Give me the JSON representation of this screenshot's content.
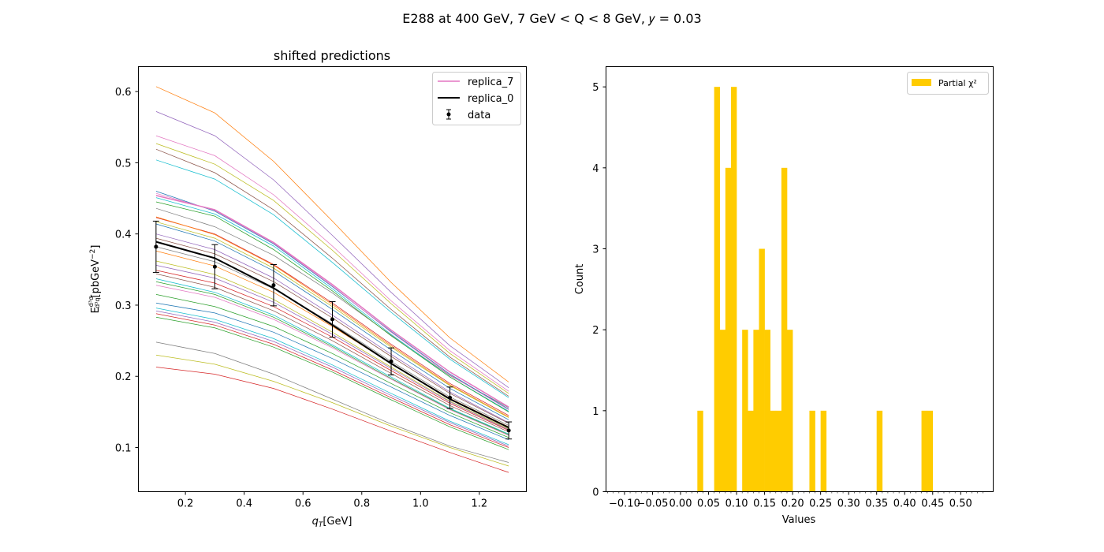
{
  "figure": {
    "suptitle": "E288  at 400 GeV, 7 GeV < Q < 8 GeV, 𝑦 = 0.03"
  },
  "chart_data": [
    {
      "type": "line",
      "title": "shifted predictions",
      "xlabel": "q_T[GeV]",
      "ylabel": "E d³σ/d³q [pbGeV⁻²]",
      "xlim": [
        0.04,
        1.36
      ],
      "ylim": [
        0.038,
        0.635
      ],
      "x_ticks": [
        0.2,
        0.4,
        0.6,
        0.8,
        1.0,
        1.2
      ],
      "x_tick_labels": [
        "0.2",
        "0.4",
        "0.6",
        "0.8",
        "1.0",
        "1.2"
      ],
      "y_ticks": [
        0.1,
        0.2,
        0.3,
        0.4,
        0.5,
        0.6
      ],
      "y_tick_labels": [
        "0.1",
        "0.2",
        "0.3",
        "0.4",
        "0.5",
        "0.6"
      ],
      "grid": false,
      "legend": {
        "location": "upper right",
        "entries": [
          {
            "label": "replica_7",
            "color": "#e377c2",
            "kind": "line"
          },
          {
            "label": "replica_0",
            "color": "#000000",
            "kind": "line"
          },
          {
            "label": "data",
            "color": "#000000",
            "kind": "errorbar"
          }
        ]
      },
      "x": [
        0.1,
        0.3,
        0.5,
        0.7,
        0.9,
        1.1,
        1.3
      ],
      "replica_lines": [
        {
          "color": "#ff7f0e",
          "values": [
            0.607,
            0.57,
            0.502,
            0.418,
            0.332,
            0.254,
            0.192
          ]
        },
        {
          "color": "#9467bd",
          "values": [
            0.572,
            0.538,
            0.476,
            0.398,
            0.318,
            0.243,
            0.184
          ]
        },
        {
          "color": "#e377c2",
          "values": [
            0.538,
            0.51,
            0.455,
            0.383,
            0.306,
            0.236,
            0.179
          ]
        },
        {
          "color": "#bcbd22",
          "values": [
            0.527,
            0.498,
            0.447,
            0.377,
            0.302,
            0.232,
            0.176
          ]
        },
        {
          "color": "#8c564b",
          "values": [
            0.519,
            0.486,
            0.434,
            0.366,
            0.294,
            0.227,
            0.172
          ]
        },
        {
          "color": "#17becf",
          "values": [
            0.504,
            0.477,
            0.427,
            0.36,
            0.29,
            0.224,
            0.17
          ]
        },
        {
          "color": "#7f7f7f",
          "values": [
            0.436,
            0.41,
            0.37,
            0.317,
            0.258,
            0.201,
            0.156
          ]
        },
        {
          "color": "#1f77b4",
          "values": [
            0.46,
            0.432,
            0.386,
            0.326,
            0.263,
            0.203,
            0.154
          ]
        },
        {
          "color": "#e377c2",
          "values": [
            0.457,
            0.433,
            0.387,
            0.327,
            0.262,
            0.202,
            0.153
          ]
        },
        {
          "color": "#17becf",
          "values": [
            0.451,
            0.428,
            0.383,
            0.323,
            0.259,
            0.199,
            0.151
          ]
        },
        {
          "color": "#2ca02c",
          "values": [
            0.445,
            0.425,
            0.378,
            0.32,
            0.257,
            0.199,
            0.15
          ]
        },
        {
          "color": "#d62728",
          "values": [
            0.423,
            0.4,
            0.357,
            0.303,
            0.245,
            0.19,
            0.145
          ]
        },
        {
          "color": "#bcbd22",
          "values": [
            0.417,
            0.394,
            0.352,
            0.298,
            0.241,
            0.187,
            0.142
          ]
        },
        {
          "color": "#ff7f0e",
          "values": [
            0.424,
            0.399,
            0.356,
            0.301,
            0.243,
            0.188,
            0.143
          ]
        },
        {
          "color": "#9467bd",
          "values": [
            0.4,
            0.378,
            0.338,
            0.286,
            0.231,
            0.178,
            0.135
          ]
        },
        {
          "color": "#1f77b4",
          "values": [
            0.414,
            0.39,
            0.348,
            0.294,
            0.237,
            0.183,
            0.139
          ]
        },
        {
          "color": "#8c564b",
          "values": [
            0.394,
            0.372,
            0.333,
            0.282,
            0.228,
            0.176,
            0.134
          ]
        },
        {
          "color": "#7f7f7f",
          "values": [
            0.382,
            0.361,
            0.323,
            0.274,
            0.221,
            0.171,
            0.131
          ]
        },
        {
          "color": "#ff7f0e",
          "values": [
            0.376,
            0.355,
            0.318,
            0.27,
            0.218,
            0.169,
            0.129
          ]
        },
        {
          "color": "#bcbd22",
          "values": [
            0.362,
            0.343,
            0.308,
            0.262,
            0.213,
            0.165,
            0.126
          ]
        },
        {
          "color": "#9467bd",
          "values": [
            0.356,
            0.338,
            0.304,
            0.259,
            0.211,
            0.164,
            0.125
          ]
        },
        {
          "color": "#d62728",
          "values": [
            0.349,
            0.331,
            0.298,
            0.255,
            0.208,
            0.162,
            0.124
          ]
        },
        {
          "color": "#8c564b",
          "values": [
            0.344,
            0.325,
            0.292,
            0.25,
            0.204,
            0.159,
            0.122
          ]
        },
        {
          "color": "#17becf",
          "values": [
            0.337,
            0.318,
            0.286,
            0.244,
            0.199,
            0.155,
            0.119
          ]
        },
        {
          "color": "#2ca02c",
          "values": [
            0.333,
            0.315,
            0.283,
            0.242,
            0.197,
            0.154,
            0.118
          ]
        },
        {
          "color": "#e377c2",
          "values": [
            0.328,
            0.311,
            0.28,
            0.24,
            0.196,
            0.153,
            0.117
          ]
        },
        {
          "color": "#2ca02c",
          "values": [
            0.315,
            0.298,
            0.27,
            0.232,
            0.19,
            0.149,
            0.114
          ]
        },
        {
          "color": "#1f77b4",
          "values": [
            0.303,
            0.289,
            0.262,
            0.225,
            0.185,
            0.145,
            0.111
          ]
        },
        {
          "color": "#17becf",
          "values": [
            0.296,
            0.28,
            0.253,
            0.216,
            0.176,
            0.137,
            0.104
          ]
        },
        {
          "color": "#9467bd",
          "values": [
            0.292,
            0.276,
            0.249,
            0.213,
            0.173,
            0.135,
            0.102
          ]
        },
        {
          "color": "#d62728",
          "values": [
            0.288,
            0.272,
            0.245,
            0.209,
            0.17,
            0.132,
            0.1
          ]
        },
        {
          "color": "#2ca02c",
          "values": [
            0.283,
            0.268,
            0.241,
            0.206,
            0.167,
            0.129,
            0.097
          ]
        },
        {
          "color": "#7f7f7f",
          "values": [
            0.248,
            0.232,
            0.203,
            0.168,
            0.133,
            0.102,
            0.079
          ]
        },
        {
          "color": "#bcbd22",
          "values": [
            0.23,
            0.217,
            0.193,
            0.163,
            0.13,
            0.1,
            0.074
          ]
        },
        {
          "color": "#d62728",
          "values": [
            0.213,
            0.203,
            0.183,
            0.154,
            0.123,
            0.093,
            0.065
          ]
        }
      ],
      "series": [
        {
          "name": "replica_7",
          "color": "#e377c2",
          "values": [
            0.454,
            0.434,
            0.388,
            0.329,
            0.265,
            0.206,
            0.157
          ]
        },
        {
          "name": "replica_0",
          "color": "#000000",
          "values": [
            0.389,
            0.366,
            0.324,
            0.272,
            0.218,
            0.168,
            0.128
          ]
        }
      ],
      "data_points": {
        "name": "data",
        "x": [
          0.1,
          0.3,
          0.5,
          0.7,
          0.9,
          1.1,
          1.3
        ],
        "y": [
          0.382,
          0.354,
          0.328,
          0.28,
          0.221,
          0.17,
          0.124
        ],
        "yerr": [
          0.036,
          0.031,
          0.029,
          0.025,
          0.019,
          0.015,
          0.012
        ]
      }
    },
    {
      "type": "bar",
      "title": "",
      "xlabel": "Values",
      "ylabel": "Count",
      "xlim": [
        -0.133,
        0.558
      ],
      "ylim": [
        0,
        5.25
      ],
      "x_ticks": [
        -0.1,
        -0.05,
        0.0,
        0.05,
        0.1,
        0.15,
        0.2,
        0.25,
        0.3,
        0.35,
        0.4,
        0.45,
        0.5
      ],
      "x_tick_labels": [
        "−0.10",
        "−0.05",
        "0.00",
        "0.05",
        "0.10",
        "0.15",
        "0.20",
        "0.25",
        "0.30",
        "0.35",
        "0.40",
        "0.45",
        "0.50"
      ],
      "x_minor_tick_step": 0.01,
      "y_ticks": [
        0,
        1,
        2,
        3,
        4,
        5
      ],
      "y_tick_labels": [
        "0",
        "1",
        "2",
        "3",
        "4",
        "5"
      ],
      "grid": false,
      "color": "#ffcc00",
      "legend": {
        "location": "upper right",
        "entries": [
          {
            "label": "Partial χ²",
            "color": "#ffcc00",
            "kind": "patch"
          }
        ]
      },
      "bin_width": 0.01,
      "bins": [
        {
          "start": 0.03,
          "count": 1
        },
        {
          "start": 0.06,
          "count": 5
        },
        {
          "start": 0.07,
          "count": 2
        },
        {
          "start": 0.08,
          "count": 4
        },
        {
          "start": 0.09,
          "count": 5
        },
        {
          "start": 0.11,
          "count": 2
        },
        {
          "start": 0.12,
          "count": 1
        },
        {
          "start": 0.13,
          "count": 2
        },
        {
          "start": 0.14,
          "count": 3
        },
        {
          "start": 0.15,
          "count": 2
        },
        {
          "start": 0.16,
          "count": 1
        },
        {
          "start": 0.17,
          "count": 1
        },
        {
          "start": 0.18,
          "count": 4
        },
        {
          "start": 0.19,
          "count": 2
        },
        {
          "start": 0.23,
          "count": 1
        },
        {
          "start": 0.25,
          "count": 1
        },
        {
          "start": 0.35,
          "count": 1
        },
        {
          "start": 0.43,
          "count": 1
        },
        {
          "start": 0.44,
          "count": 1
        }
      ]
    }
  ]
}
